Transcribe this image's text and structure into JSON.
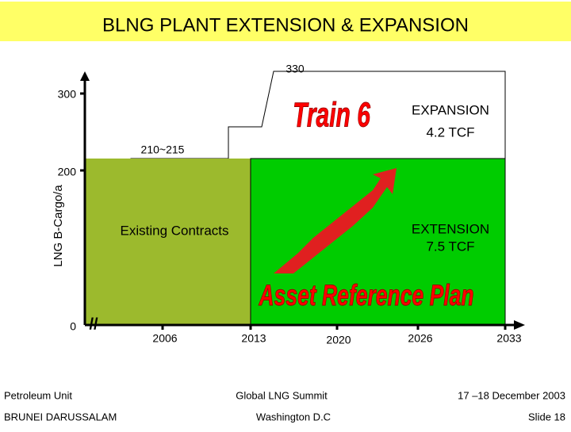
{
  "header": {
    "title": "BLNG PLANT EXTENSION & EXPANSION"
  },
  "chart": {
    "y_axis_label": "LNG B-Cargo/a",
    "y_tick_labels": [
      "0",
      "200",
      "300"
    ],
    "x_tick_labels": [
      "2006",
      "2013",
      "2020",
      "2026",
      "2033"
    ],
    "level_labels": [
      "210~215",
      "330"
    ],
    "regions": {
      "existing": "Existing Contracts",
      "extension": [
        "EXTENSION",
        "7.5 TCF"
      ],
      "expansion": [
        "EXPANSION",
        "4.2 TCF"
      ]
    },
    "banners": [
      "Train 6",
      "Asset Reference Plan"
    ]
  },
  "footer": {
    "left": [
      "Petroleum Unit",
      "BRUNEI DARUSSALAM"
    ],
    "center": [
      "Global LNG Summit",
      "Washington D.C"
    ],
    "right": [
      "17 –18 December 2003",
      "Slide 18"
    ]
  }
}
